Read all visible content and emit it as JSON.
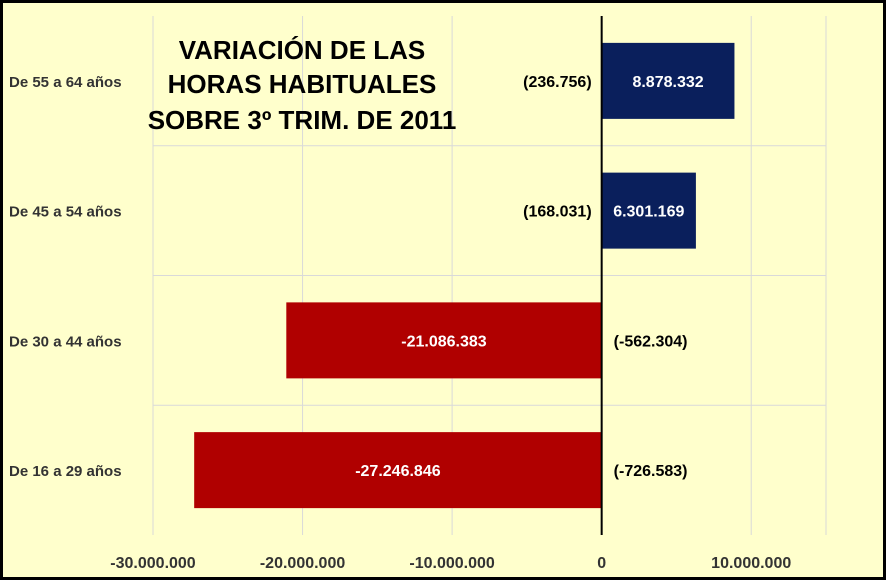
{
  "chart_data": {
    "type": "bar",
    "orientation": "horizontal",
    "title_lines": [
      "VARIACIÓN DE LAS",
      "HORAS HABITUALES",
      "SOBRE 3º TRIM. DE 2011"
    ],
    "categories": [
      "De 55 a 64 años",
      "De 45 a 54 años",
      "De 30 a 44 años",
      "De 16 a 29 años"
    ],
    "values": [
      8878332,
      6301169,
      -21086383,
      -27246846
    ],
    "value_labels": [
      "8.878.332",
      "6.301.169",
      "-21.086.383",
      "-27.246.846"
    ],
    "secondary_labels": [
      "(236.756)",
      "(168.031)",
      "(-562.304)",
      "(-726.583)"
    ],
    "xlim": [
      -30000000,
      15000000
    ],
    "x_ticks": [
      -30000000,
      -20000000,
      -10000000,
      0,
      10000000
    ],
    "x_tick_labels": [
      "-30.000.000",
      "-20.000.000",
      "-10.000.000",
      "0",
      "10.000.000"
    ],
    "grid": true,
    "legend": "none"
  },
  "colors": {
    "background": "#ffffcc",
    "positive_bar": "#0a1f5c",
    "negative_bar": "#b00000",
    "gridline": "#d9d9d9",
    "axis": "#000000"
  }
}
